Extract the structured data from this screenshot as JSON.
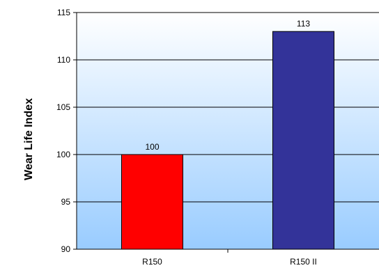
{
  "chart_data": {
    "type": "bar",
    "title": "",
    "xlabel": "",
    "ylabel": "Wear Life Index",
    "categories": [
      "R150",
      "R150 II"
    ],
    "values": [
      100,
      113
    ],
    "data_labels": [
      "100",
      "113"
    ],
    "bar_colors": [
      "#ff0000",
      "#333399"
    ],
    "ylim": [
      90,
      115
    ],
    "yticks": [
      90,
      95,
      100,
      105,
      110,
      115
    ],
    "grid": true,
    "legend": "none",
    "background_gradient": [
      "#ffffff",
      "#99ccff"
    ]
  }
}
